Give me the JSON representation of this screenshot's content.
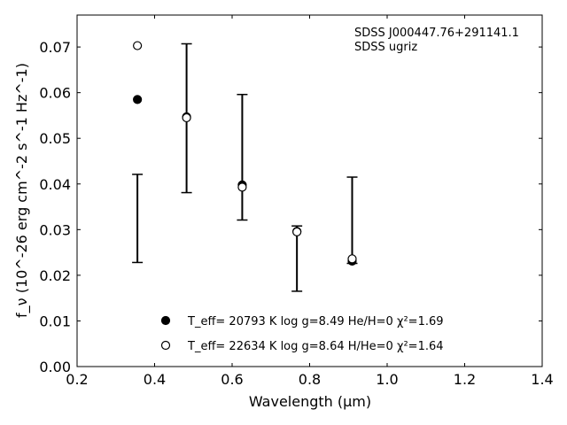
{
  "chart_data": {
    "type": "scatter",
    "title": "",
    "xlabel": "Wavelength (μm)",
    "ylabel": "f_ν (10^-26 erg cm^-2 s^-1 Hz^-1)",
    "xlim": [
      0.2,
      1.4
    ],
    "ylim": [
      0.0,
      0.077
    ],
    "xticks": [
      0.2,
      0.4,
      0.6,
      0.8,
      1.0,
      1.2,
      1.4
    ],
    "xtick_labels": [
      "0.2",
      "0.4",
      "0.6",
      "0.8",
      "1.0",
      "1.2",
      "1.4"
    ],
    "yticks": [
      0.0,
      0.01,
      0.02,
      0.03,
      0.04,
      0.05,
      0.06,
      0.07
    ],
    "ytick_labels": [
      "0.00",
      "0.01",
      "0.02",
      "0.03",
      "0.04",
      "0.05",
      "0.06",
      "0.07"
    ],
    "annotation": [
      "SDSS J000447.76+291141.1",
      "SDSS ugriz"
    ],
    "grid": false,
    "legend_position": "bottom-center",
    "observed": {
      "x": [
        0.3557,
        0.4825,
        0.6261,
        0.7672,
        0.9097
      ],
      "yerr_low": [
        0.0228,
        0.0381,
        0.0321,
        0.0165,
        0.0226
      ],
      "yerr_high": [
        0.0421,
        0.0707,
        0.0596,
        0.0308,
        0.0415
      ]
    },
    "series": [
      {
        "name": "T_eff= 20793 K  log g=8.49  He/H=0  χ²=1.69",
        "marker": "filled-circle",
        "x": [
          0.3557,
          0.4825,
          0.6261,
          0.7672,
          0.9097
        ],
        "y": [
          0.0585,
          0.0547,
          0.0398,
          0.0296,
          0.0231
        ]
      },
      {
        "name": "T_eff= 22634 K  log g=8.64  H/He=0  χ²=1.64",
        "marker": "open-circle",
        "x": [
          0.3557,
          0.4825,
          0.6261,
          0.7672,
          0.9097
        ],
        "y": [
          0.0703,
          0.0545,
          0.0393,
          0.0295,
          0.0236
        ]
      }
    ]
  }
}
